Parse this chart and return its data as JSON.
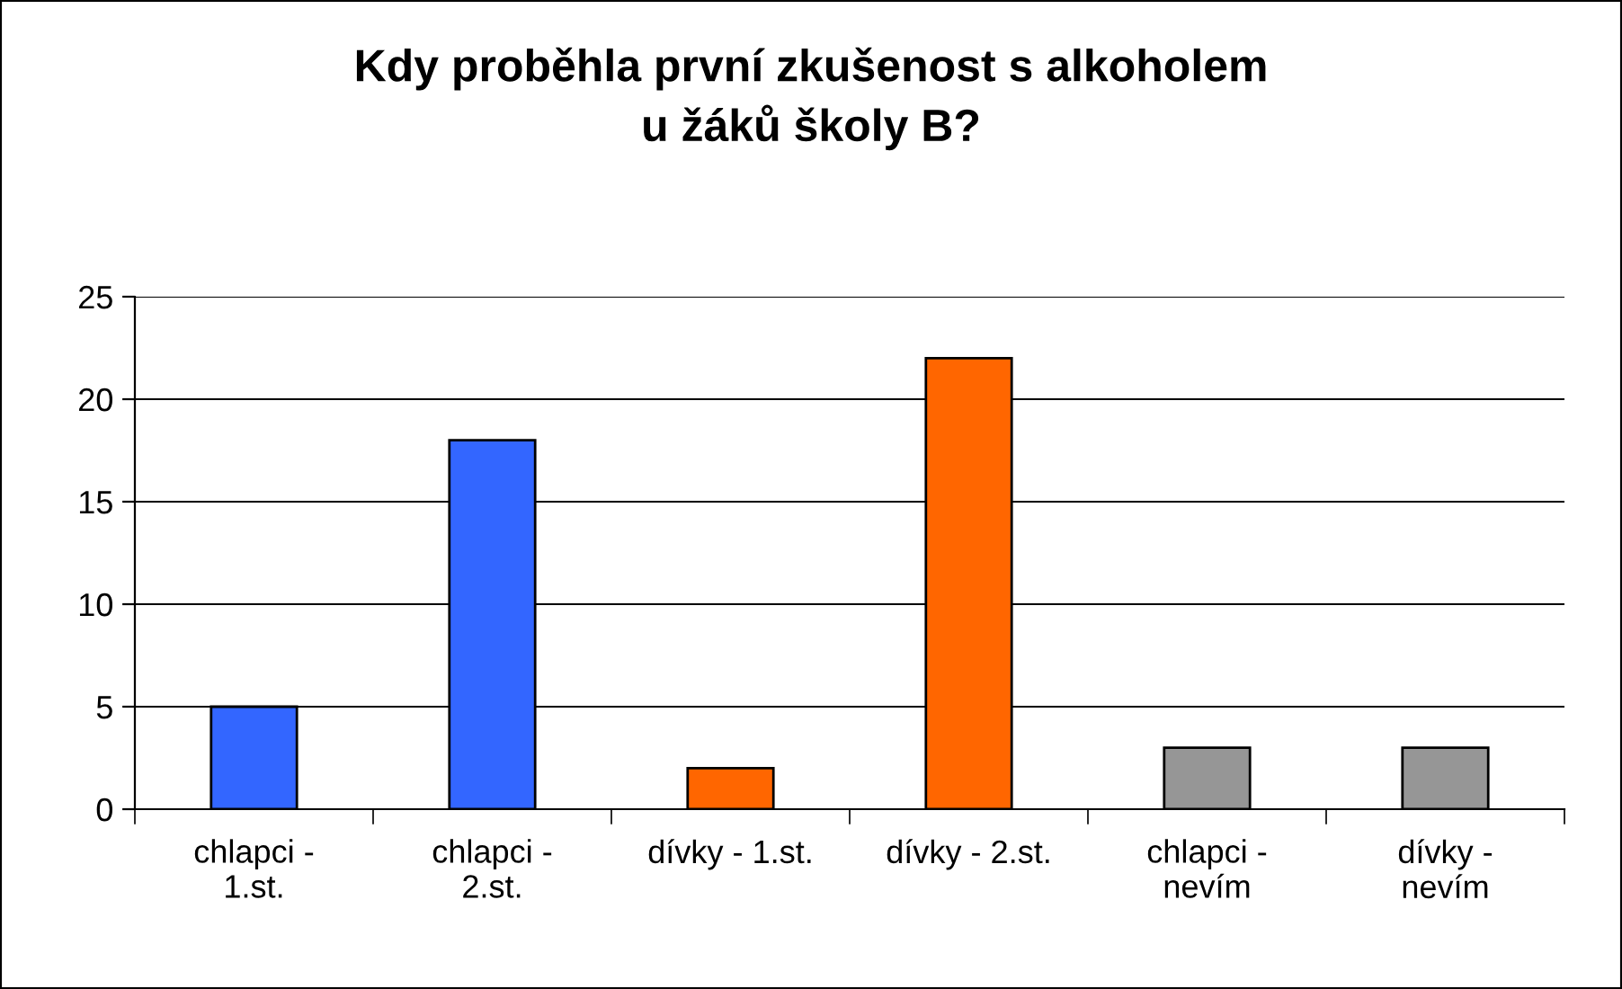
{
  "chart_data": {
    "type": "bar",
    "title": "Kdy proběhla první zkušenost s alkoholem\nu žáků školy B?",
    "categories": [
      "chlapci -\n1.st.",
      "chlapci -\n2.st.",
      "dívky - 1.st.",
      "dívky - 2.st.",
      "chlapci -\nnevím",
      "dívky -\nnevím"
    ],
    "values": [
      5,
      18,
      2,
      22,
      3,
      3
    ],
    "colors": [
      "#3366ff",
      "#3366ff",
      "#ff6600",
      "#ff6600",
      "#969696",
      "#969696"
    ],
    "ylim": [
      0,
      25
    ],
    "yticks": [
      0,
      5,
      10,
      15,
      20,
      25
    ],
    "grid": "y",
    "legend": false
  }
}
